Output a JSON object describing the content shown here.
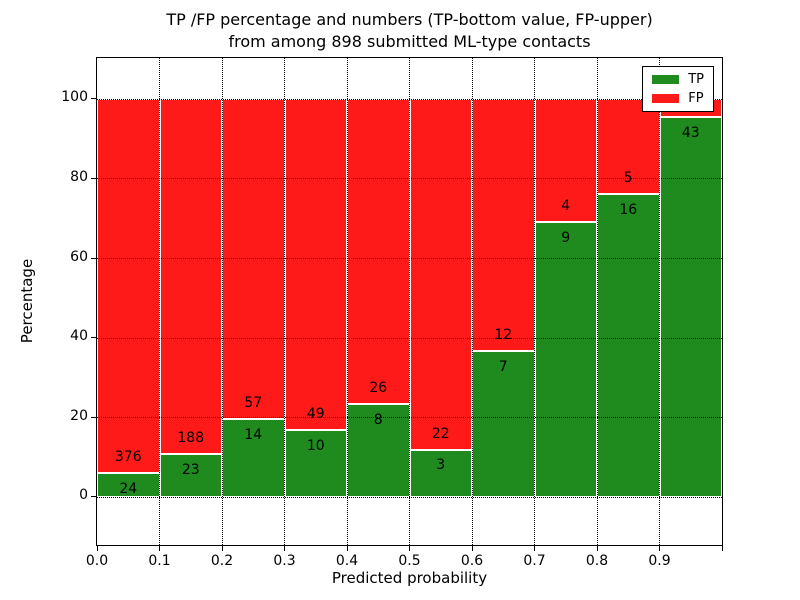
{
  "chart_data": {
    "type": "bar",
    "stacked": true,
    "title_line1": "TP /FP percentage and numbers (TP-bottom value, FP-upper)",
    "title_line2": "from among 898 submitted ML-type contacts",
    "xlabel": "Predicted probability",
    "ylabel": "Percentage",
    "total_contacts": 898,
    "bin_width": 0.1,
    "bin_starts": [
      0.0,
      0.1,
      0.2,
      0.3,
      0.4,
      0.5,
      0.6,
      0.7,
      0.8,
      0.9
    ],
    "categories": [
      "0.0-0.1",
      "0.1-0.2",
      "0.2-0.3",
      "0.3-0.4",
      "0.4-0.5",
      "0.5-0.6",
      "0.6-0.7",
      "0.7-0.8",
      "0.8-0.9",
      "0.9-1.0"
    ],
    "series": [
      {
        "name": "TP",
        "color": "#1f8b1f",
        "counts": [
          24,
          23,
          14,
          10,
          8,
          3,
          7,
          9,
          16,
          43
        ],
        "pct": [
          6.0,
          10.9,
          19.7,
          16.9,
          23.5,
          12.0,
          36.8,
          69.2,
          76.2,
          95.6
        ]
      },
      {
        "name": "FP",
        "color": "#ff1a1a",
        "counts": [
          376,
          188,
          57,
          49,
          26,
          22,
          12,
          4,
          5,
          null
        ],
        "pct": [
          94.0,
          89.1,
          80.3,
          83.1,
          76.5,
          88.0,
          63.2,
          30.8,
          23.8,
          4.4
        ]
      }
    ],
    "x_ticks": [
      {
        "value": 0.0,
        "label": "0.0"
      },
      {
        "value": 0.1,
        "label": "0.1"
      },
      {
        "value": 0.2,
        "label": "0.2"
      },
      {
        "value": 0.3,
        "label": "0.3"
      },
      {
        "value": 0.4,
        "label": "0.4"
      },
      {
        "value": 0.5,
        "label": "0.5"
      },
      {
        "value": 0.6,
        "label": "0.6"
      },
      {
        "value": 0.7,
        "label": "0.7"
      },
      {
        "value": 0.8,
        "label": "0.8"
      },
      {
        "value": 0.9,
        "label": "0.9"
      },
      {
        "value": 1.0,
        "label": ""
      }
    ],
    "x_gridlines": [
      0.1,
      0.2,
      0.3,
      0.4,
      0.5,
      0.6,
      0.7,
      0.8,
      0.9
    ],
    "y_ticks": [
      0,
      20,
      40,
      60,
      80,
      100
    ],
    "xlim": [
      0,
      1
    ],
    "ylim": [
      -12,
      110.4
    ],
    "grid": "dotted",
    "legend": {
      "position": "upper right",
      "entries": [
        {
          "label": "TP",
          "color": "#1f8b1f"
        },
        {
          "label": "FP",
          "color": "#ff1a1a"
        }
      ]
    }
  }
}
